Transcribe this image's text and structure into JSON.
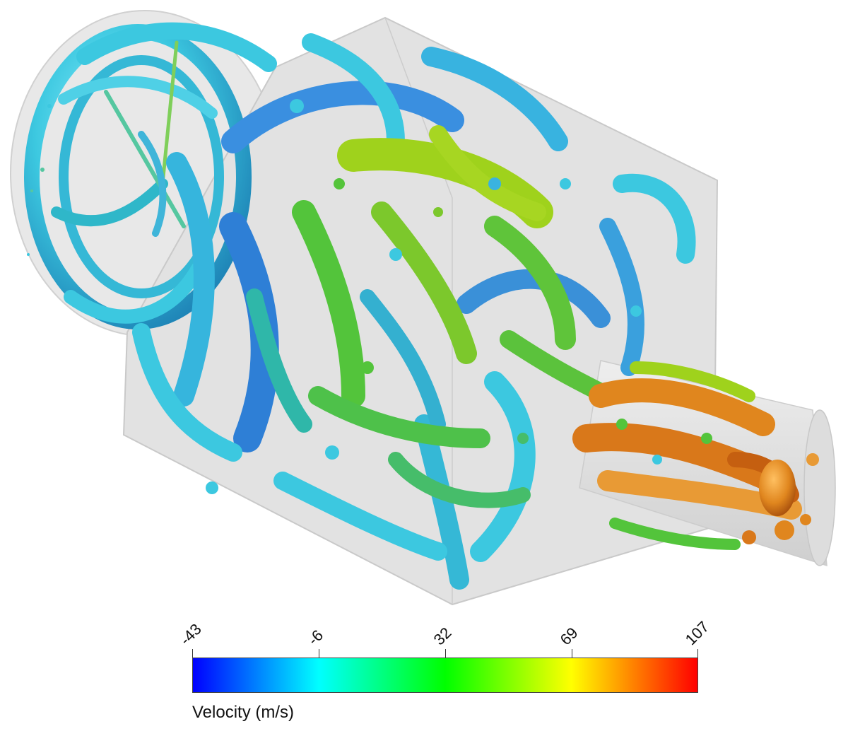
{
  "figure": {
    "description_icon": "vortex-isosurface-icon"
  },
  "colorbar": {
    "title": "Velocity (m/s)",
    "ticks": [
      "-43",
      "-6",
      "32",
      "69",
      "107"
    ],
    "min": -43,
    "max": 107,
    "colors": [
      "#0000ff",
      "#00ffff",
      "#00ff00",
      "#ffff00",
      "#ff0000"
    ]
  },
  "palette": {
    "blue": "#2a6fd6",
    "cyan": "#3cc8e0",
    "teal": "#2fb7a9",
    "green": "#53c43b",
    "lime": "#9fd21c",
    "orange": "#e0861e",
    "darkorange": "#c55f10",
    "housing": "#d8d8d8"
  }
}
